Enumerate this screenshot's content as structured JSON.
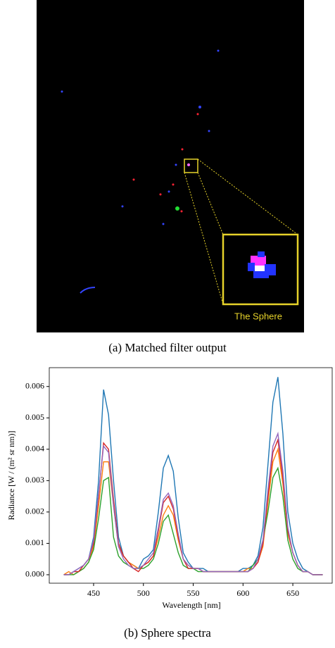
{
  "figure_a": {
    "inset_label": "The Sphere",
    "caption": "(a) Matched filter output"
  },
  "chart_data": {
    "type": "line",
    "caption": "(b) Sphere spectra",
    "x_label": "Wavelength [nm]",
    "y_label": "Radiance [W / (m² sr nm)]",
    "xlim": [
      405.5,
      689.5
    ],
    "ylim": [
      -0.00027,
      0.0066
    ],
    "xticks": [
      450,
      500,
      550,
      600,
      650
    ],
    "yticks": [
      {
        "value": 0,
        "label": "0.000"
      },
      {
        "value": 0.001,
        "label": "0.001"
      },
      {
        "value": 0.002,
        "label": "0.002"
      },
      {
        "value": 0.003,
        "label": "0.003"
      },
      {
        "value": 0.004,
        "label": "0.004"
      },
      {
        "value": 0.005,
        "label": "0.005"
      },
      {
        "value": 0.006,
        "label": "0.006"
      }
    ],
    "grid": false,
    "x": [
      420,
      425,
      430,
      435,
      440,
      445,
      450,
      455,
      460,
      465,
      470,
      475,
      480,
      485,
      490,
      495,
      500,
      505,
      510,
      515,
      520,
      525,
      530,
      535,
      540,
      545,
      550,
      555,
      560,
      565,
      570,
      575,
      580,
      585,
      590,
      595,
      600,
      605,
      610,
      615,
      620,
      625,
      630,
      635,
      640,
      645,
      650,
      655,
      660,
      665,
      670,
      675,
      680
    ],
    "series": [
      {
        "color": "#1f77b4",
        "values": [
          0,
          0,
          0.0001,
          0.0002,
          0.0003,
          0.0005,
          0.0012,
          0.003,
          0.0059,
          0.0051,
          0.003,
          0.0012,
          0.0006,
          0.0004,
          0.0003,
          0.0002,
          0.0005,
          0.0006,
          0.0008,
          0.002,
          0.0034,
          0.0038,
          0.0033,
          0.0018,
          0.0007,
          0.0004,
          0.0002,
          0.0002,
          0.0002,
          0.0001,
          0.0001,
          0.0001,
          0.0001,
          0.0001,
          0.0001,
          0.0001,
          0.0002,
          0.0002,
          0.0003,
          0.0006,
          0.0015,
          0.0035,
          0.0055,
          0.0063,
          0.0045,
          0.002,
          0.001,
          0.0005,
          0.0002,
          0.0001,
          0,
          0,
          0
        ]
      },
      {
        "color": "#ff7f0e",
        "values": [
          0,
          0.0001,
          0,
          0.0001,
          0.0002,
          0.0004,
          0.0009,
          0.0022,
          0.0036,
          0.0036,
          0.0022,
          0.0009,
          0.0006,
          0.0004,
          0.0003,
          0.0002,
          0.0003,
          0.0004,
          0.0006,
          0.0012,
          0.0019,
          0.0022,
          0.0019,
          0.0011,
          0.0005,
          0.0003,
          0.0002,
          0.0002,
          0.0001,
          0.0001,
          0.0001,
          0.0001,
          0.0001,
          0.0001,
          0.0001,
          0.0001,
          0.0001,
          0.0002,
          0.0002,
          0.0004,
          0.0009,
          0.0023,
          0.0036,
          0.004,
          0.0029,
          0.0013,
          0.0007,
          0.0003,
          0.0001,
          0.0001,
          0,
          0,
          0
        ]
      },
      {
        "color": "#2ca02c",
        "values": [
          0,
          0,
          0,
          0.0001,
          0.0002,
          0.0004,
          0.0008,
          0.0018,
          0.003,
          0.0031,
          0.0012,
          0.0006,
          0.0004,
          0.0003,
          0.0002,
          0.0002,
          0.0002,
          0.0003,
          0.0005,
          0.001,
          0.0017,
          0.0019,
          0.0013,
          0.0007,
          0.0003,
          0.0002,
          0.0002,
          0.0001,
          0.0001,
          0.0001,
          0.0001,
          0.0001,
          0.0001,
          0.0001,
          0.0001,
          0.0001,
          0.0001,
          0.0001,
          0.0003,
          0.0005,
          0.0011,
          0.002,
          0.0031,
          0.0034,
          0.0025,
          0.0011,
          0.0005,
          0.0002,
          0.0001,
          0.0001,
          0,
          0,
          0
        ]
      },
      {
        "color": "#d62728",
        "values": [
          0,
          0,
          0.0001,
          0.0001,
          0.0003,
          0.0005,
          0.001,
          0.0025,
          0.0042,
          0.004,
          0.0024,
          0.001,
          0.0006,
          0.0004,
          0.0002,
          0.0001,
          0.0003,
          0.0004,
          0.0006,
          0.0014,
          0.0023,
          0.0025,
          0.0021,
          0.0012,
          0.0005,
          0.0002,
          0.0002,
          0.0002,
          0.0001,
          0.0001,
          0.0001,
          0.0001,
          0.0001,
          0.0001,
          0.0001,
          0.0001,
          0.0001,
          0.0001,
          0.0002,
          0.0004,
          0.001,
          0.0025,
          0.0039,
          0.0043,
          0.0031,
          0.0014,
          0.0007,
          0.0003,
          0.0001,
          0.0001,
          0,
          0,
          0
        ]
      },
      {
        "color": "#9467bd",
        "values": [
          0,
          0,
          0.0001,
          0.0002,
          0.0003,
          0.0005,
          0.0011,
          0.0026,
          0.0041,
          0.0039,
          0.0022,
          0.0009,
          0.0005,
          0.0003,
          0.0002,
          0.0002,
          0.0003,
          0.0005,
          0.0007,
          0.0015,
          0.0024,
          0.0026,
          0.0022,
          0.0013,
          0.0005,
          0.0003,
          0.0002,
          0.0002,
          0.0001,
          0.0001,
          0.0001,
          0.0001,
          0.0001,
          0.0001,
          0.0001,
          0.0001,
          0.0001,
          0.0001,
          0.0002,
          0.0005,
          0.0011,
          0.0027,
          0.0041,
          0.0045,
          0.0033,
          0.0015,
          0.0007,
          0.0003,
          0.0001,
          0.0001,
          0,
          0,
          0
        ]
      }
    ]
  }
}
